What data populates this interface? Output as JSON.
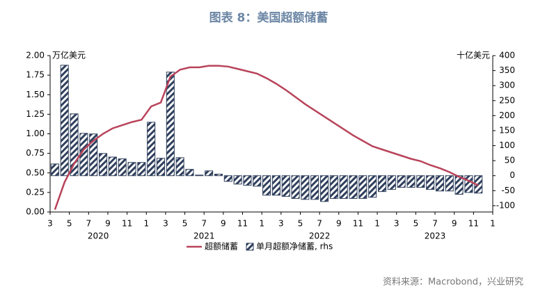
{
  "chart_data": {
    "type": "bar-line",
    "title": "图表 8：美国超额储蓄",
    "y_label": "万亿美元",
    "y2_label": "十亿美元",
    "source": "资料来源：Macrobond，兴业研究",
    "xlim": [
      0,
      46
    ],
    "xticks": [
      {
        "value": 0,
        "label": "3"
      },
      {
        "value": 2,
        "label": "5"
      },
      {
        "value": 4,
        "label": "7"
      },
      {
        "value": 6,
        "label": "9"
      },
      {
        "value": 8,
        "label": "11"
      },
      {
        "value": 10,
        "label": "1"
      },
      {
        "value": 12,
        "label": "3"
      },
      {
        "value": 14,
        "label": "5"
      },
      {
        "value": 16,
        "label": "7"
      },
      {
        "value": 18,
        "label": "9"
      },
      {
        "value": 20,
        "label": "11"
      },
      {
        "value": 22,
        "label": "1"
      },
      {
        "value": 24,
        "label": "3"
      },
      {
        "value": 26,
        "label": "5"
      },
      {
        "value": 28,
        "label": "7"
      },
      {
        "value": 30,
        "label": "9"
      },
      {
        "value": 32,
        "label": "11"
      },
      {
        "value": 34,
        "label": "1"
      },
      {
        "value": 36,
        "label": "3"
      },
      {
        "value": 38,
        "label": "5"
      },
      {
        "value": 40,
        "label": "7"
      },
      {
        "value": 42,
        "label": "9"
      },
      {
        "value": 44,
        "label": "11"
      },
      {
        "value": 46,
        "label": "1"
      }
    ],
    "year_labels": [
      {
        "value": 5,
        "label": "2020"
      },
      {
        "value": 16,
        "label": "2021"
      },
      {
        "value": 28,
        "label": "2022"
      },
      {
        "value": 40,
        "label": "2023"
      }
    ],
    "ylim": [
      0,
      2
    ],
    "yticks": [
      {
        "value": 0,
        "label": "0.00"
      },
      {
        "value": 0.25,
        "label": "0.25"
      },
      {
        "value": 0.5,
        "label": "0.50"
      },
      {
        "value": 0.75,
        "label": "0.75"
      },
      {
        "value": 1,
        "label": "1.00"
      },
      {
        "value": 1.25,
        "label": "1.25"
      },
      {
        "value": 1.5,
        "label": "1.50"
      },
      {
        "value": 1.75,
        "label": "1.75"
      },
      {
        "value": 2,
        "label": "2.00"
      }
    ],
    "y2lim": [
      -121,
      400
    ],
    "y2ticks": [
      400,
      350,
      300,
      250,
      200,
      150,
      100,
      50,
      0,
      -50,
      -100
    ],
    "series": [
      {
        "name": "超额储蓄",
        "type": "line",
        "color": "#b8435a",
        "values": [
          0.03,
          0.38,
          0.62,
          0.8,
          0.91,
          1.0,
          1.07,
          1.11,
          1.15,
          1.18,
          1.35,
          1.4,
          1.73,
          1.82,
          1.85,
          1.85,
          1.87,
          1.87,
          1.86,
          1.83,
          1.8,
          1.77,
          1.71,
          1.64,
          1.56,
          1.47,
          1.38,
          1.3,
          1.22,
          1.14,
          1.06,
          0.98,
          0.91,
          0.84,
          0.8,
          0.76,
          0.72,
          0.68,
          0.65,
          0.6,
          0.56,
          0.51,
          0.45,
          0.4,
          0.34
        ]
      },
      {
        "name": "单月超额净储蓄, rhs",
        "type": "bar",
        "axis": "y2",
        "color": "#2f3f5c",
        "values": [
          39,
          368,
          206,
          141,
          139,
          74,
          62,
          56,
          44,
          44,
          178,
          58,
          345,
          60,
          21,
          2,
          16,
          5,
          -19,
          -28,
          -32,
          -35,
          -65,
          -65,
          -69,
          -76,
          -79,
          -79,
          -86,
          -76,
          -76,
          -76,
          -76,
          -72,
          -53,
          -46,
          -39,
          -39,
          -39,
          -46,
          -51,
          -51,
          -62,
          -56,
          -58
        ]
      }
    ]
  }
}
